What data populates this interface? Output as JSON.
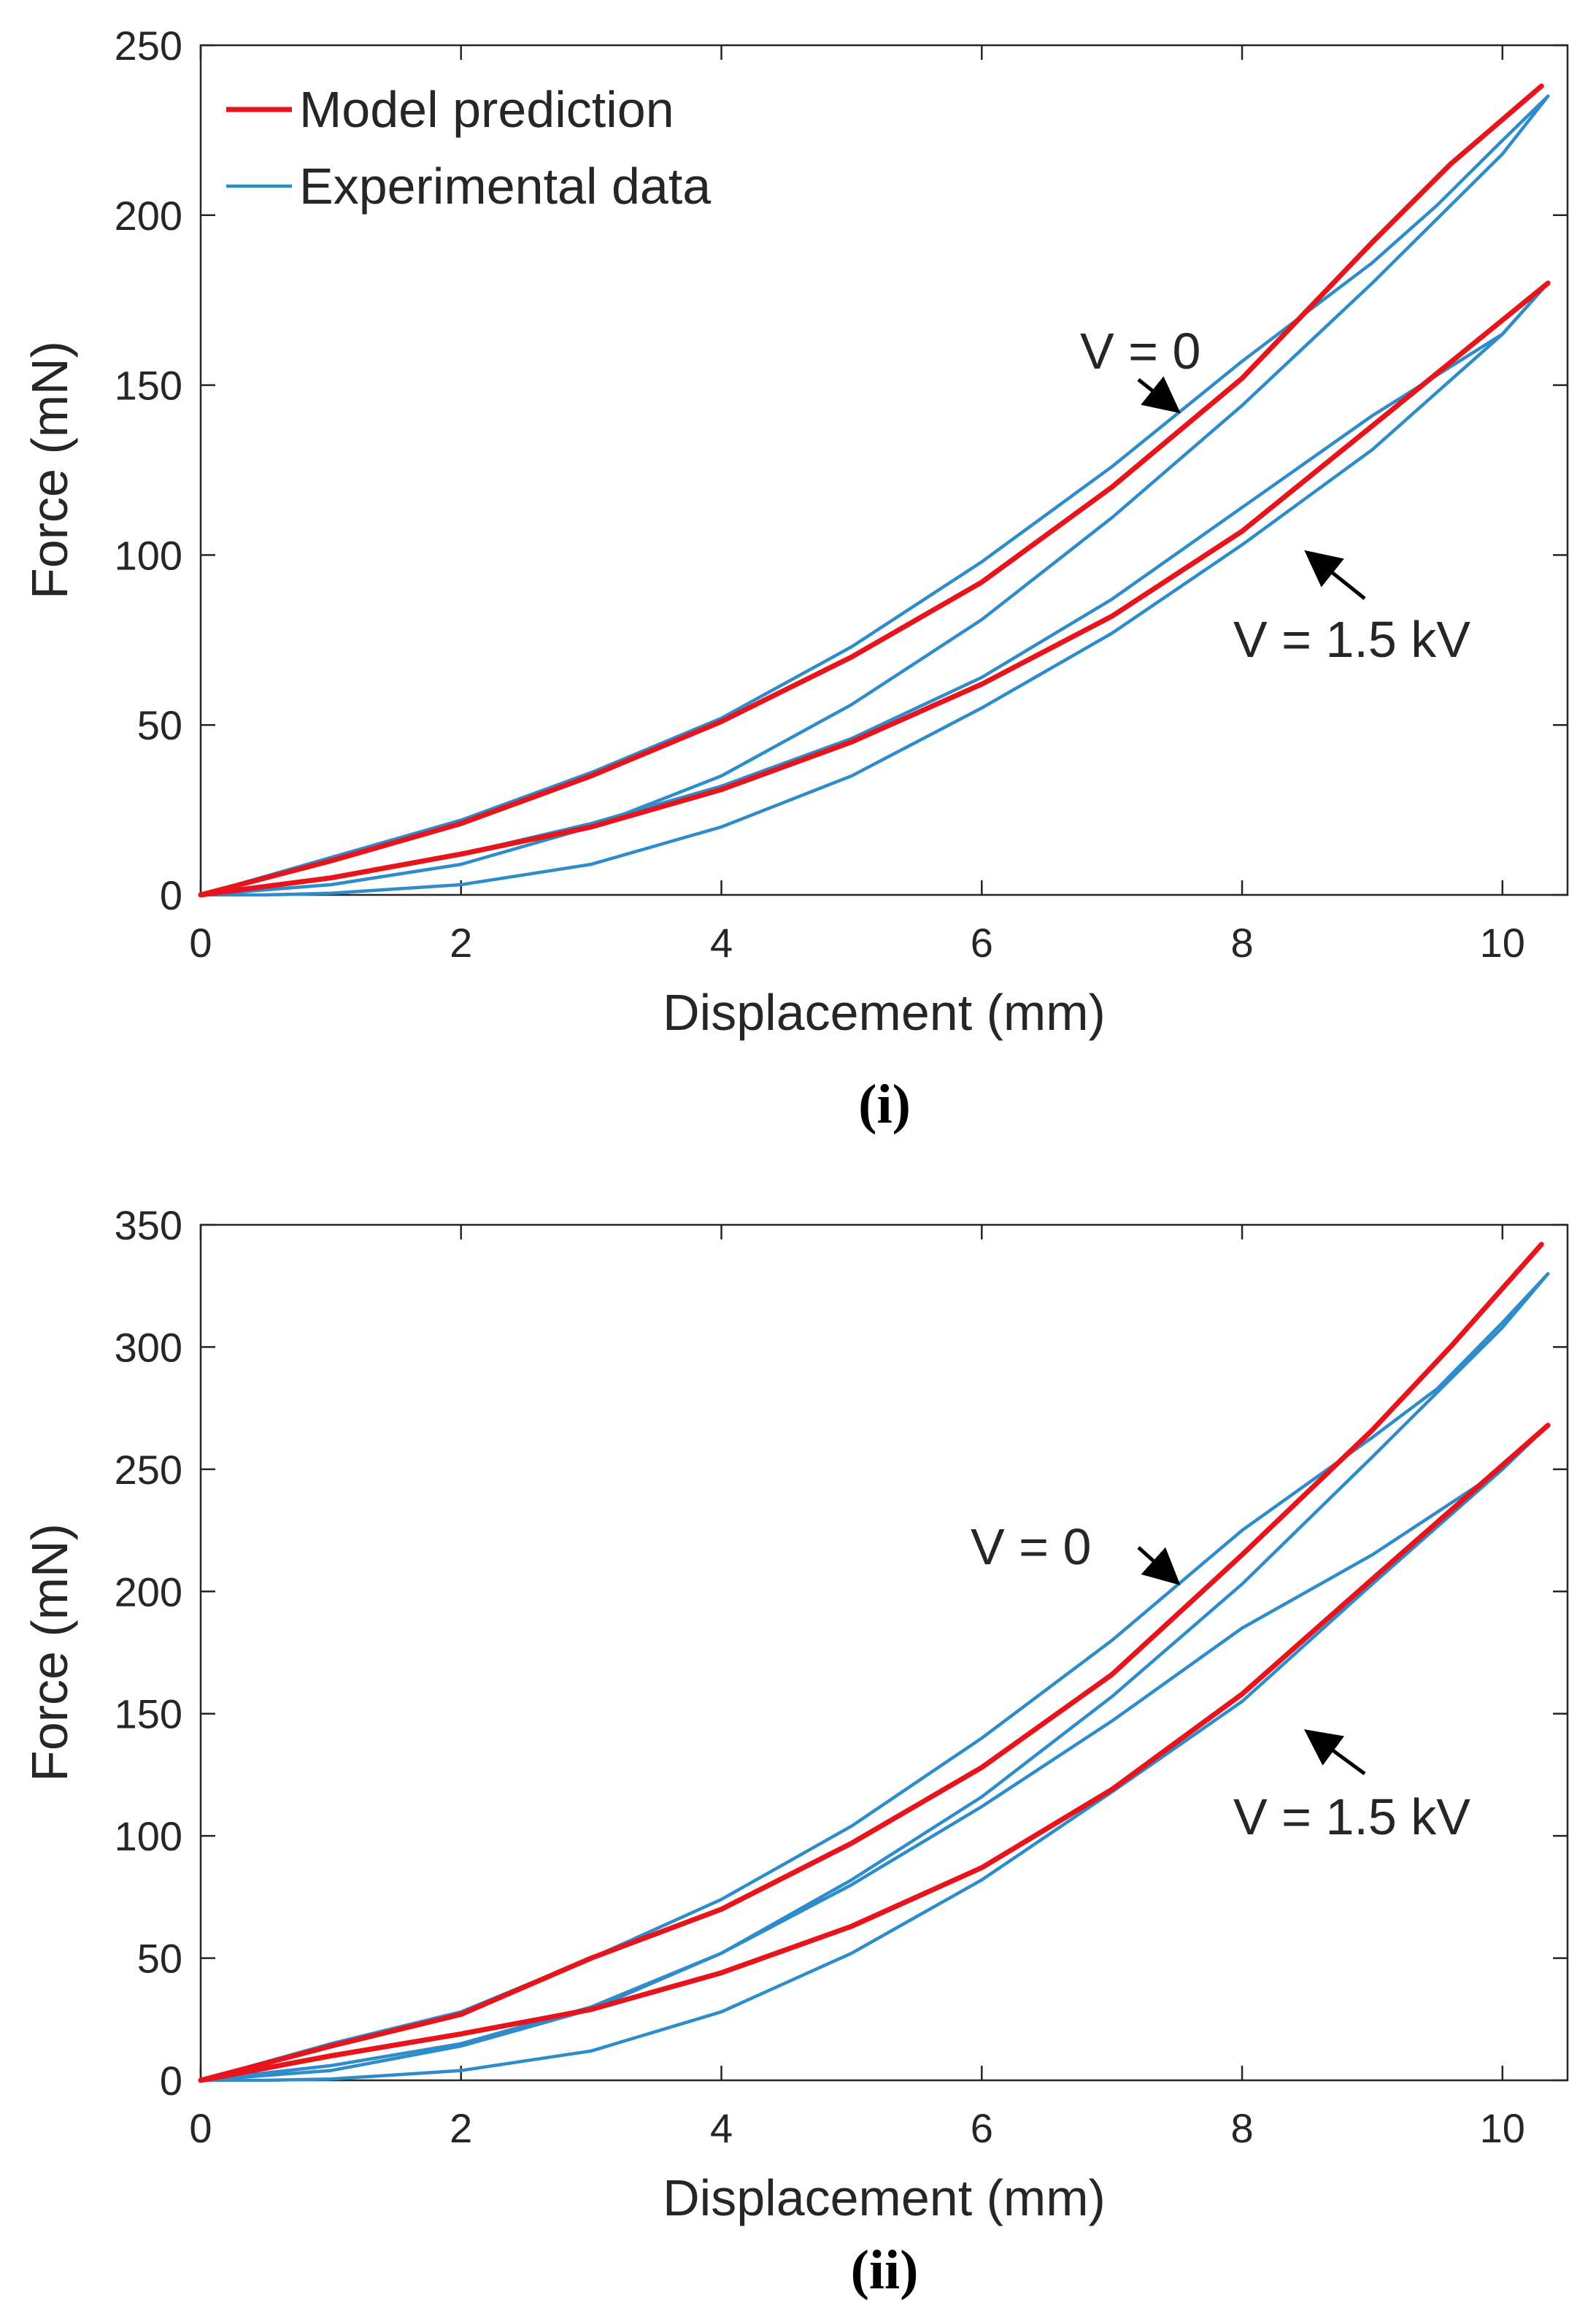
{
  "colors": {
    "model": "#e8141c",
    "experimental": "#2f8ccb",
    "axis": "#262626",
    "annotation": "#000000"
  },
  "chart_data": [
    {
      "type": "line",
      "panel": "i",
      "caption_text": "i",
      "xlabel": "Displacement (mm)",
      "ylabel": "Force (mN)",
      "xlim": [
        0,
        10.5
      ],
      "ylim": [
        0,
        250
      ],
      "xticks": [
        0,
        2,
        4,
        6,
        8,
        10
      ],
      "yticks": [
        0,
        50,
        100,
        150,
        200,
        250
      ],
      "legend": {
        "position": "top-left",
        "entries": [
          "Model prediction",
          "Experimental data"
        ]
      },
      "annotations": {
        "v0": "V = 0",
        "v15": "V = 1.5 kV"
      },
      "series": [
        {
          "name": "Model prediction",
          "key": "model",
          "label": "V = 0",
          "x": [
            0,
            1,
            2,
            3,
            4,
            5,
            6,
            7,
            8,
            9,
            9.6,
            10.3
          ],
          "y": [
            0,
            10,
            21,
            35,
            51,
            70,
            92,
            120,
            152,
            192,
            215,
            238
          ]
        },
        {
          "name": "Model prediction",
          "key": "model",
          "label": "V = 1.5 kV",
          "x": [
            0,
            1,
            2,
            3,
            4,
            5,
            6,
            7,
            8,
            9,
            10.35
          ],
          "y": [
            0,
            5,
            12,
            20,
            31,
            45,
            62,
            82,
            107,
            138,
            180
          ]
        },
        {
          "name": "Experimental data",
          "key": "experimental",
          "label": "V = 0 loading",
          "x": [
            0,
            1,
            2,
            3,
            4,
            5,
            6,
            7,
            8,
            9,
            9.5,
            10,
            10.35
          ],
          "y": [
            0,
            11,
            22,
            36,
            52,
            73,
            98,
            126,
            157,
            186,
            203,
            222,
            235
          ]
        },
        {
          "name": "Experimental data",
          "key": "experimental",
          "label": "V = 0 unloading",
          "x": [
            10.35,
            10,
            9,
            8,
            7,
            6,
            5,
            4,
            3,
            2,
            1,
            0
          ],
          "y": [
            235,
            218,
            180,
            144,
            111,
            81,
            56,
            35,
            20,
            9,
            3,
            0
          ]
        },
        {
          "name": "Experimental data",
          "key": "experimental",
          "label": "V = 1.5 kV loading",
          "x": [
            0,
            1,
            2,
            3,
            4,
            5,
            6,
            7,
            8,
            9,
            10,
            10.35
          ],
          "y": [
            0,
            5,
            12,
            21,
            32,
            46,
            64,
            87,
            114,
            141,
            165,
            180
          ]
        },
        {
          "name": "Experimental data",
          "key": "experimental",
          "label": "V = 1.5 kV unloading",
          "x": [
            10.35,
            10,
            9,
            8,
            7,
            6,
            5,
            4,
            3,
            2,
            1,
            0.5,
            0
          ],
          "y": [
            180,
            165,
            131,
            103,
            77,
            55,
            35,
            20,
            9,
            3,
            0.5,
            0,
            0
          ]
        }
      ]
    },
    {
      "type": "line",
      "panel": "ii",
      "caption_text": "ii",
      "xlabel": "Displacement (mm)",
      "ylabel": "Force (mN)",
      "xlim": [
        0,
        10.5
      ],
      "ylim": [
        0,
        350
      ],
      "xticks": [
        0,
        2,
        4,
        6,
        8,
        10
      ],
      "yticks": [
        0,
        50,
        100,
        150,
        200,
        250,
        300,
        350
      ],
      "annotations": {
        "v0": "V = 0",
        "v15": "V = 1.5 kV"
      },
      "series": [
        {
          "name": "Model prediction",
          "key": "model",
          "label": "V = 0",
          "x": [
            0,
            1,
            2,
            3,
            4,
            5,
            6,
            7,
            8,
            9,
            9.6,
            10.3
          ],
          "y": [
            0,
            14,
            27,
            50,
            70,
            97,
            128,
            166,
            215,
            266,
            300,
            342
          ]
        },
        {
          "name": "Model prediction",
          "key": "model",
          "label": "V = 1.5 kV",
          "x": [
            0,
            1,
            2,
            3,
            4,
            5,
            6,
            7,
            8,
            9,
            10.35
          ],
          "y": [
            0,
            10,
            19,
            29,
            44,
            63,
            87,
            119,
            158,
            205,
            268
          ]
        },
        {
          "name": "Experimental data",
          "key": "experimental",
          "label": "V = 0 loading",
          "x": [
            0,
            1,
            2,
            3,
            4,
            5,
            6,
            7,
            8,
            9,
            9.5,
            10,
            10.35
          ],
          "y": [
            0,
            15,
            28,
            50,
            74,
            104,
            140,
            180,
            225,
            263,
            283,
            310,
            330
          ]
        },
        {
          "name": "Experimental data",
          "key": "experimental",
          "label": "V = 0 unloading",
          "x": [
            10.35,
            10,
            9,
            8,
            7,
            6,
            5,
            4,
            3,
            2,
            1,
            0
          ],
          "y": [
            330,
            308,
            255,
            203,
            157,
            116,
            82,
            52,
            29,
            14,
            4,
            0
          ]
        },
        {
          "name": "Experimental data",
          "key": "experimental",
          "label": "V = 1.5 kV loading",
          "x": [
            0,
            1,
            2,
            3,
            4,
            5,
            6,
            7,
            8,
            9,
            10,
            10.35
          ],
          "y": [
            0,
            6,
            15,
            30,
            52,
            80,
            112,
            147,
            185,
            215,
            250,
            268
          ]
        },
        {
          "name": "Experimental data",
          "key": "experimental",
          "label": "V = 1.5 kV unloading",
          "x": [
            10.35,
            10,
            9,
            8,
            7,
            6,
            5,
            4,
            3,
            2,
            1,
            0.5,
            0
          ],
          "y": [
            268,
            250,
            203,
            155,
            118,
            82,
            52,
            28,
            12,
            4,
            0.5,
            0,
            0
          ]
        }
      ]
    }
  ]
}
